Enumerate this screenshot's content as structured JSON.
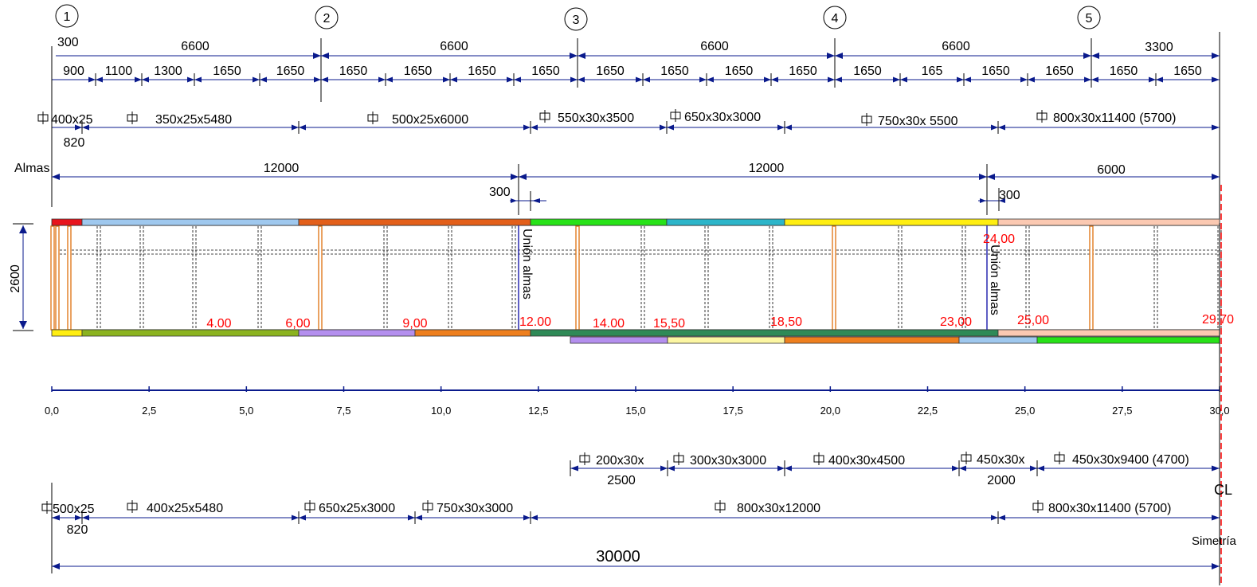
{
  "x_axis_ticks": [
    "0,0",
    "2,5",
    "5,0",
    "7,5",
    "10,0",
    "12,5",
    "15,0",
    "17,5",
    "20,0",
    "22,5",
    "25,0",
    "27,5",
    "30,0"
  ],
  "axes": {
    "numbers": [
      "1",
      "2",
      "3",
      "4",
      "5"
    ],
    "spans": [
      "6600",
      "6600",
      "6600",
      "6600",
      "3300"
    ],
    "start_offset": "300"
  },
  "stiffeners": [
    "900",
    "1100",
    "1300",
    "1650",
    "1650",
    "1650",
    "1650",
    "1650",
    "1650",
    "1650",
    "1650",
    "1650",
    "1650",
    "1650",
    "165",
    "1650",
    "1650",
    "1650",
    "1650"
  ],
  "top_flanges": [
    {
      "label": "400x25",
      "sub": "820"
    },
    {
      "label": "350x25x5480"
    },
    {
      "label": "500x25x6000"
    },
    {
      "label": "550x30x3500"
    },
    {
      "label": "650x30x3000"
    },
    {
      "label": "750x30x 5500"
    },
    {
      "label": "800x30x11400 (5700)"
    }
  ],
  "webs": {
    "title": "Almas",
    "segments": [
      "12000",
      "12000",
      "6000"
    ],
    "joint_offsets": [
      "300",
      "300"
    ],
    "joint_label": "Unión almas"
  },
  "girder": {
    "height_label": "2600",
    "top_flange_colors": [
      "#e8141c",
      "#9fc8ee",
      "#e35f1a",
      "#27e218",
      "#2cb5c9",
      "#ffee11",
      "#fbc9b2"
    ],
    "bottom_flange_colors": [
      "#ffee11",
      "#8bb31f",
      "#b48fee",
      "#ee7f1e",
      "#2f8a57",
      "#fbc9b2"
    ],
    "extra_plate_colors": [
      "#b48fee",
      "#fcf6a2",
      "#ee7f1e",
      "#9fc8ee",
      "#27e218"
    ],
    "station_labels": [
      "4.00",
      "6,00",
      "9,00",
      "12.00",
      "14.00",
      "15,50",
      "18,50",
      "23,00",
      "24,00",
      "25,00",
      "29,70"
    ]
  },
  "bottom_extra_plates": [
    {
      "label": "200x30x",
      "sub": "2500"
    },
    {
      "label": "300x30x3000"
    },
    {
      "label": "400x30x4500"
    },
    {
      "label": "450x30x",
      "sub": "2000"
    },
    {
      "label": "450x30x9400  (4700)"
    }
  ],
  "bottom_flanges": [
    {
      "label": "500x25",
      "sub": "820"
    },
    {
      "label": "400x25x5480"
    },
    {
      "label": "650x25x3000"
    },
    {
      "label": "750x30x3000"
    },
    {
      "label": "800x30x12000"
    },
    {
      "label": "800x30x11400 (5700)"
    }
  ],
  "total_length": "30000",
  "symmetry": {
    "cl": "CL",
    "label": "Simetría"
  },
  "colors": {
    "dimension": "#0a1a8c",
    "station": "#ff0000",
    "joint": "#2a2ab0",
    "axis_line": "#0a1a8c"
  }
}
